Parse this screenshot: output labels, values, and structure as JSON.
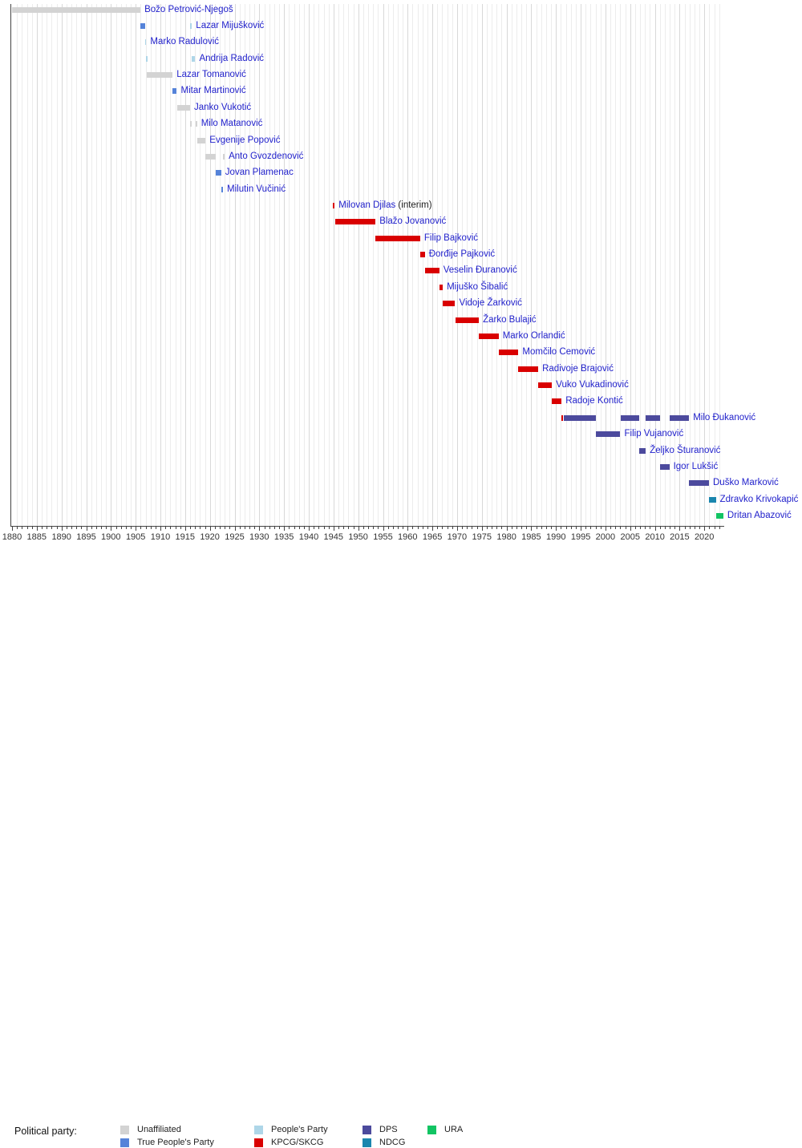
{
  "chart_data": {
    "type": "timeline",
    "title": "",
    "description": "Gantt-style timeline of prime ministers with bars colored by political party",
    "axis": {
      "start_year": 1880,
      "end_year": 2024,
      "tick_label_years": [
        1880,
        1885,
        1890,
        1895,
        1900,
        1905,
        1910,
        1915,
        1920,
        1925,
        1930,
        1935,
        1940,
        1945,
        1950,
        1955,
        1960,
        1965,
        1970,
        1975,
        1980,
        1985,
        1990,
        1995,
        2000,
        2005,
        2010,
        2015,
        2020
      ],
      "minor_tick_step": 1,
      "major_tick_step": 5,
      "grid": "vertical"
    },
    "parties": {
      "unaffiliated": {
        "label": "Unaffiliated",
        "color": "#d3d3d3"
      },
      "tpp": {
        "label": "True People's Party",
        "color": "#5583d9"
      },
      "np": {
        "label": "People's Party",
        "color": "#aed6e8"
      },
      "kpcg": {
        "label": "KPCG/SKCG",
        "color": "#d90000"
      },
      "dps": {
        "label": "DPS",
        "color": "#4c4a9d"
      },
      "ndcg": {
        "label": "NDCG",
        "color": "#1a86ae"
      },
      "ura": {
        "label": "URA",
        "color": "#12c463"
      }
    },
    "people": [
      {
        "name": "Božo Petrović-Njegoš",
        "suffix": "",
        "terms": [
          {
            "from": 1880.0,
            "to": 1905.96,
            "party": "unaffiliated"
          }
        ]
      },
      {
        "name": "Lazar Mijušković",
        "suffix": "",
        "terms": [
          {
            "from": 1905.96,
            "to": 1906.9,
            "party": "tpp"
          },
          {
            "from": 1916.0,
            "to": 1916.37,
            "party": "np"
          }
        ]
      },
      {
        "name": "Marko Radulović",
        "suffix": "",
        "terms": [
          {
            "from": 1906.9,
            "to": 1907.1,
            "party": "np"
          }
        ]
      },
      {
        "name": "Andrija Radović",
        "suffix": "",
        "terms": [
          {
            "from": 1907.1,
            "to": 1907.3,
            "party": "np"
          },
          {
            "from": 1916.37,
            "to": 1917.05,
            "party": "np"
          }
        ]
      },
      {
        "name": "Lazar Tomanović",
        "suffix": "",
        "terms": [
          {
            "from": 1907.3,
            "to": 1912.47,
            "party": "unaffiliated"
          }
        ]
      },
      {
        "name": "Mitar Martinović",
        "suffix": "",
        "terms": [
          {
            "from": 1912.47,
            "to": 1913.32,
            "party": "tpp"
          }
        ]
      },
      {
        "name": "Janko Vukotić",
        "suffix": "",
        "terms": [
          {
            "from": 1913.32,
            "to": 1916.0,
            "party": "unaffiliated"
          }
        ]
      },
      {
        "name": "Milo Matanović",
        "suffix": "",
        "terms": [
          {
            "from": 1915.95,
            "to": 1916.3,
            "party": "unaffiliated"
          },
          {
            "from": 1917.05,
            "to": 1917.41,
            "party": "unaffiliated"
          }
        ]
      },
      {
        "name": "Evgenije Popović",
        "suffix": "",
        "terms": [
          {
            "from": 1917.41,
            "to": 1919.13,
            "party": "unaffiliated"
          }
        ]
      },
      {
        "name": "Anto Gvozdenović",
        "suffix": "",
        "terms": [
          {
            "from": 1919.13,
            "to": 1921.13,
            "party": "unaffiliated"
          },
          {
            "from": 1922.6,
            "to": 1923.0,
            "party": "unaffiliated"
          }
        ]
      },
      {
        "name": "Jovan Plamenac",
        "suffix": "",
        "terms": [
          {
            "from": 1921.13,
            "to": 1922.3,
            "party": "tpp"
          }
        ]
      },
      {
        "name": "Milutin Vučinić",
        "suffix": "",
        "terms": [
          {
            "from": 1922.35,
            "to": 1922.65,
            "party": "tpp"
          }
        ]
      },
      {
        "name": "Milovan Djilas",
        "suffix": " (interim)",
        "terms": [
          {
            "from": 1944.85,
            "to": 1945.25,
            "party": "kpcg"
          }
        ]
      },
      {
        "name": "Blažo Jovanović",
        "suffix": "",
        "terms": [
          {
            "from": 1945.3,
            "to": 1953.5,
            "party": "kpcg"
          }
        ]
      },
      {
        "name": "Filip Bajković",
        "suffix": "",
        "terms": [
          {
            "from": 1953.5,
            "to": 1962.53,
            "party": "kpcg"
          }
        ]
      },
      {
        "name": "Đorđije Pajković",
        "suffix": "",
        "terms": [
          {
            "from": 1962.53,
            "to": 1963.48,
            "party": "kpcg"
          }
        ]
      },
      {
        "name": "Veselin Đuranović",
        "suffix": "",
        "terms": [
          {
            "from": 1963.48,
            "to": 1966.4,
            "party": "kpcg"
          }
        ]
      },
      {
        "name": "Mijuško Šibalić",
        "suffix": "",
        "terms": [
          {
            "from": 1966.4,
            "to": 1967.1,
            "party": "kpcg"
          }
        ]
      },
      {
        "name": "Vidoje Žarković",
        "suffix": "",
        "terms": [
          {
            "from": 1967.1,
            "to": 1969.6,
            "party": "kpcg"
          }
        ]
      },
      {
        "name": "Žarko Bulajić",
        "suffix": "",
        "terms": [
          {
            "from": 1969.6,
            "to": 1974.4,
            "party": "kpcg"
          }
        ]
      },
      {
        "name": "Marko Orlandić",
        "suffix": "",
        "terms": [
          {
            "from": 1974.4,
            "to": 1978.4,
            "party": "kpcg"
          }
        ]
      },
      {
        "name": "Momčilo Cemović",
        "suffix": "",
        "terms": [
          {
            "from": 1978.4,
            "to": 1982.4,
            "party": "kpcg"
          }
        ]
      },
      {
        "name": "Radivoje Brajović",
        "suffix": "",
        "terms": [
          {
            "from": 1982.4,
            "to": 1986.4,
            "party": "kpcg"
          }
        ]
      },
      {
        "name": "Vuko Vukadinović",
        "suffix": "",
        "terms": [
          {
            "from": 1986.4,
            "to": 1989.2,
            "party": "kpcg"
          }
        ]
      },
      {
        "name": "Radoje Kontić",
        "suffix": "",
        "terms": [
          {
            "from": 1989.2,
            "to": 1991.12,
            "party": "kpcg"
          }
        ]
      },
      {
        "name": "Milo Đukanović",
        "suffix": "",
        "terms": [
          {
            "from": 1991.12,
            "to": 1991.5,
            "party": "kpcg"
          },
          {
            "from": 1991.5,
            "to": 1998.1,
            "party": "dps"
          },
          {
            "from": 2003.02,
            "to": 2006.86,
            "party": "dps"
          },
          {
            "from": 2008.16,
            "to": 2010.99,
            "party": "dps"
          },
          {
            "from": 2012.93,
            "to": 2016.91,
            "party": "dps"
          }
        ]
      },
      {
        "name": "Filip Vujanović",
        "suffix": "",
        "terms": [
          {
            "from": 1998.1,
            "to": 2003.02,
            "party": "dps"
          }
        ]
      },
      {
        "name": "Željko Šturanović",
        "suffix": "",
        "terms": [
          {
            "from": 2006.86,
            "to": 2008.16,
            "party": "dps"
          }
        ]
      },
      {
        "name": "Igor Lukšić",
        "suffix": "",
        "terms": [
          {
            "from": 2010.99,
            "to": 2012.93,
            "party": "dps"
          }
        ]
      },
      {
        "name": "Duško Marković",
        "suffix": "",
        "terms": [
          {
            "from": 2016.91,
            "to": 2020.93,
            "party": "dps"
          }
        ]
      },
      {
        "name": "Zdravko Krivokapić",
        "suffix": "",
        "terms": [
          {
            "from": 2020.93,
            "to": 2022.33,
            "party": "ndcg"
          }
        ]
      },
      {
        "name": "Dritan Abazović",
        "suffix": "",
        "terms": [
          {
            "from": 2022.33,
            "to": 2023.83,
            "party": "ura"
          }
        ]
      }
    ],
    "legend": {
      "title": "Political party:",
      "columns": [
        [
          "unaffiliated",
          "tpp"
        ],
        [
          "np",
          "kpcg"
        ],
        [
          "dps",
          "ndcg"
        ],
        [
          "ura"
        ]
      ]
    }
  }
}
